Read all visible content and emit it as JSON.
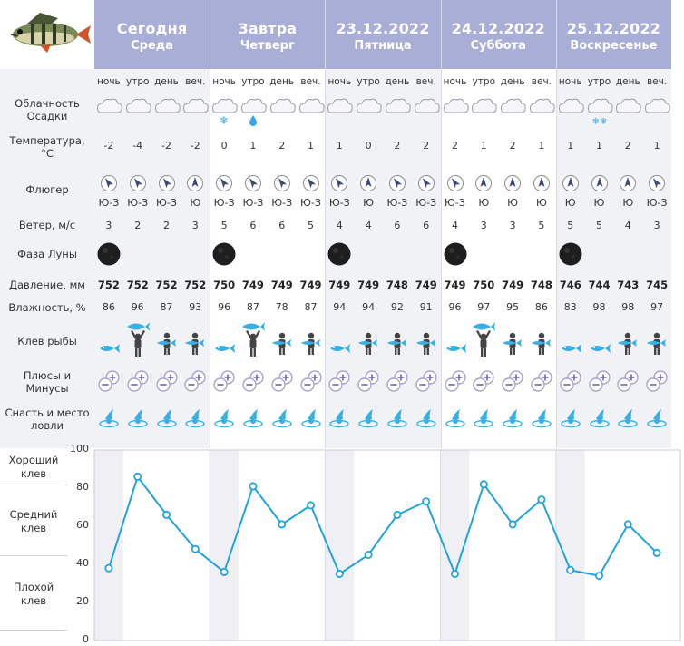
{
  "days": [
    {
      "title": "Сегодня",
      "weekday": "Среда"
    },
    {
      "title": "Завтра",
      "weekday": "Четверг"
    },
    {
      "title": "23.12.2022",
      "weekday": "Пятница"
    },
    {
      "title": "24.12.2022",
      "weekday": "Суббота"
    },
    {
      "title": "25.12.2022",
      "weekday": "Воскресенье"
    }
  ],
  "periods": [
    "ночь",
    "утро",
    "день",
    "веч."
  ],
  "row_labels": {
    "cloud_a": "Облачность",
    "cloud_b": "Осадки",
    "temp_a": "Температура,",
    "temp_b": "°С",
    "vane": "Флюгер",
    "wind": "Ветер, м/с",
    "moon": "Фаза Луны",
    "pressure": "Давление, мм",
    "humidity": "Влажность, %",
    "bite": "Клев рыбы",
    "pm_a": "Плюсы и",
    "pm_b": "Минусы",
    "tackle_a": "Снасть и место",
    "tackle_b": "ловли"
  },
  "precip": [
    "",
    "",
    "",
    "",
    "snow",
    "rain",
    "",
    "",
    "",
    "",
    "",
    "",
    "",
    "",
    "",
    "",
    "",
    "snow2",
    "",
    ""
  ],
  "temperature": [
    "-2",
    "-4",
    "-2",
    "-2",
    "0",
    "1",
    "2",
    "1",
    "1",
    "0",
    "2",
    "2",
    "2",
    "1",
    "2",
    "1",
    "1",
    "1",
    "2",
    "1"
  ],
  "wind_direction": [
    "Ю-З",
    "Ю-З",
    "Ю-З",
    "Ю",
    "Ю-З",
    "Ю-З",
    "Ю-З",
    "Ю-З",
    "Ю-З",
    "Ю",
    "Ю-З",
    "Ю-З",
    "Ю-З",
    "Ю",
    "Ю",
    "Ю",
    "Ю",
    "Ю",
    "Ю",
    "Ю-З"
  ],
  "wind_speed": [
    "3",
    "2",
    "2",
    "3",
    "5",
    "6",
    "6",
    "5",
    "4",
    "4",
    "6",
    "6",
    "4",
    "3",
    "3",
    "5",
    "5",
    "5",
    "4",
    "3"
  ],
  "moon": [
    true,
    false,
    false,
    false,
    true,
    false,
    false,
    false,
    true,
    false,
    false,
    false,
    true,
    false,
    false,
    false,
    true,
    false,
    false,
    false
  ],
  "pressure": [
    "752",
    "752",
    "752",
    "752",
    "750",
    "749",
    "749",
    "749",
    "749",
    "749",
    "748",
    "749",
    "749",
    "750",
    "749",
    "748",
    "746",
    "744",
    "743",
    "745"
  ],
  "humidity": [
    "86",
    "96",
    "87",
    "93",
    "96",
    "87",
    "78",
    "87",
    "94",
    "94",
    "92",
    "91",
    "96",
    "97",
    "95",
    "86",
    "83",
    "98",
    "98",
    "97"
  ],
  "bite_icon": [
    "fish",
    "big",
    "man",
    "man",
    "fish",
    "big",
    "man",
    "man",
    "fish",
    "man",
    "man",
    "man",
    "fish",
    "big",
    "man",
    "man",
    "fish",
    "fish",
    "man",
    "man"
  ],
  "graph": {
    "labels": {
      "good_a": "Хороший",
      "good_b": "клев",
      "mid_a": "Средний",
      "mid_b": "клев",
      "bad_a": "Плохой",
      "bad_b": "клев"
    },
    "yticks": [
      "100",
      "80",
      "60",
      "40",
      "20",
      "0"
    ],
    "ymax": 100,
    "color": "#1fa4e0",
    "values": [
      38,
      86,
      66,
      48,
      36,
      81,
      61,
      71,
      35,
      45,
      66,
      73,
      35,
      82,
      61,
      74,
      37,
      34,
      61,
      46
    ]
  },
  "colors": {
    "header": "#a9aed6",
    "accent": "#1fa4e0",
    "band_even": "#f1f2f6",
    "band_odd": "#ffffff"
  }
}
